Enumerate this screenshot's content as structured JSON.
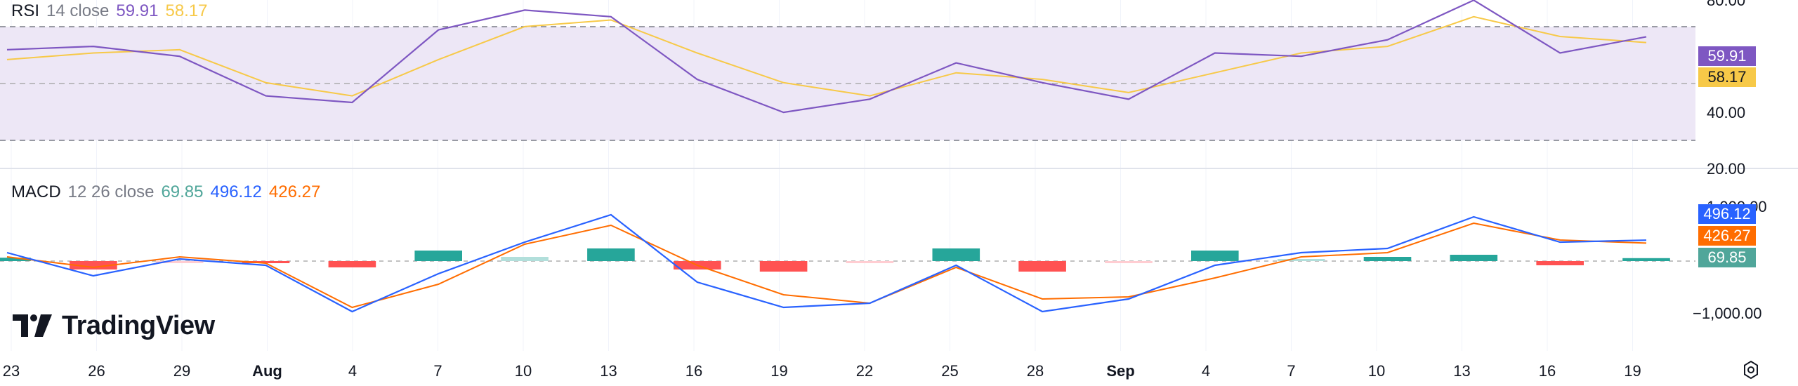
{
  "watermark": "TradingView",
  "settings_icon": "gear-icon",
  "colors": {
    "rsi_line": "#7e57c2",
    "rsi_ma": "#f7c948",
    "rsi_band": "#ede7f6",
    "macd_line": "#2962ff",
    "signal_line": "#ff6d00",
    "hist_pos_strong": "#26a69a",
    "hist_pos_weak": "#b2dfdb",
    "hist_neg_strong": "#ff5252",
    "hist_neg_weak": "#ffcdd2",
    "hist_tag": "#50a69a"
  },
  "rsi_panel": {
    "legend": {
      "name": "RSI",
      "params": "14 close",
      "rsi_value": "59.91",
      "ma_value": "58.17"
    },
    "scale_labels": [
      "80.00",
      "40.00",
      "20.00"
    ],
    "last_rsi_tag": "59.91",
    "last_ma_tag": "58.17"
  },
  "macd_panel": {
    "legend": {
      "name": "MACD",
      "params": "12 26 close",
      "hist_value": "69.85",
      "macd_value": "496.12",
      "signal_value": "426.27"
    },
    "scale_labels": [
      "1,000.00",
      "−1,000.00"
    ],
    "last_macd_tag": "496.12",
    "last_signal_tag": "426.27",
    "last_hist_tag": "69.85"
  },
  "x_axis_labels": [
    {
      "text": "23",
      "bold": false
    },
    {
      "text": "26",
      "bold": false
    },
    {
      "text": "29",
      "bold": false
    },
    {
      "text": "Aug",
      "bold": true
    },
    {
      "text": "4",
      "bold": false
    },
    {
      "text": "7",
      "bold": false
    },
    {
      "text": "10",
      "bold": false
    },
    {
      "text": "13",
      "bold": false
    },
    {
      "text": "16",
      "bold": false
    },
    {
      "text": "19",
      "bold": false
    },
    {
      "text": "22",
      "bold": false
    },
    {
      "text": "25",
      "bold": false
    },
    {
      "text": "28",
      "bold": false
    },
    {
      "text": "Sep",
      "bold": true
    },
    {
      "text": "4",
      "bold": false
    },
    {
      "text": "7",
      "bold": false
    },
    {
      "text": "10",
      "bold": false
    },
    {
      "text": "13",
      "bold": false
    },
    {
      "text": "16",
      "bold": false
    },
    {
      "text": "19",
      "bold": false
    }
  ],
  "chart_data": [
    {
      "type": "line",
      "ylim": [
        20,
        80
      ],
      "x": [
        "Jul 23",
        "Jul 26",
        "Jul 29",
        "Aug 1",
        "Aug 4",
        "Aug 7",
        "Aug 10",
        "Aug 13",
        "Aug 16",
        "Aug 19",
        "Aug 22",
        "Aug 25",
        "Aug 28",
        "Sep 1",
        "Sep 4",
        "Sep 7",
        "Sep 10",
        "Sep 13",
        "Sep 16",
        "Sep 18"
      ],
      "series": [
        {
          "values": [
            56,
            57,
            54,
            42,
            40,
            62,
            68,
            66,
            47,
            37,
            41,
            52,
            46,
            41,
            55,
            54,
            59,
            71,
            55,
            59.91
          ]
        },
        {
          "values": [
            53,
            55,
            56,
            46,
            42,
            53,
            63,
            65,
            55,
            46,
            42,
            49,
            47,
            43,
            49,
            55,
            57,
            66,
            60,
            58.17
          ]
        }
      ]
    },
    {
      "type": "line",
      "ylim": [
        -1200,
        1200
      ],
      "x": [
        "Jul 23",
        "Jul 26",
        "Jul 29",
        "Aug 1",
        "Aug 4",
        "Aug 7",
        "Aug 10",
        "Aug 13",
        "Aug 16",
        "Aug 19",
        "Aug 22",
        "Aug 25",
        "Aug 28",
        "Sep 1",
        "Sep 4",
        "Sep 7",
        "Sep 10",
        "Sep 13",
        "Sep 16",
        "Sep 18"
      ],
      "series": [
        {
          "values": [
            200,
            -350,
            50,
            -100,
            -1200,
            -300,
            450,
            1100,
            -500,
            -1100,
            -1000,
            -100,
            -1200,
            -900,
            -100,
            200,
            300,
            1050,
            450,
            496.12
          ]
        },
        {
          "values": [
            100,
            -150,
            100,
            -50,
            -1100,
            -550,
            400,
            850,
            -100,
            -800,
            -1000,
            -150,
            -900,
            -850,
            -400,
            100,
            200,
            900,
            500,
            426.27
          ]
        },
        {
          "type": "bar",
          "values": [
            80,
            -200,
            -50,
            -50,
            -150,
            250,
            100,
            300,
            -200,
            -250,
            -50,
            300,
            -250,
            -50,
            250,
            50,
            100,
            150,
            -100,
            69.85
          ]
        }
      ]
    }
  ]
}
